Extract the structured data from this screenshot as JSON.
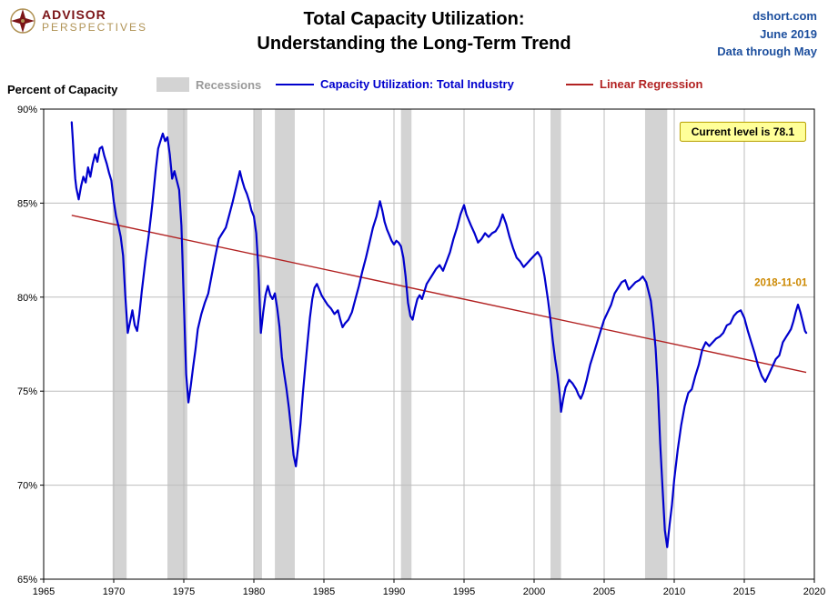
{
  "header": {
    "logo": {
      "line1": "ADVISOR",
      "line2": "PERSPECTIVES"
    },
    "title_line1": "Total Capacity Utilization:",
    "title_line2": "Understanding the Long-Term Trend",
    "source": "dshort.com",
    "date": "June 2019",
    "note": "Data through May"
  },
  "ylabel": "Percent of Capacity",
  "legend": {
    "recessions": "Recessions",
    "series": "Capacity Utilization: Total Industry",
    "regression": "Linear Regression"
  },
  "chart_data": {
    "type": "line",
    "title": "Total Capacity Utilization: Understanding the Long-Term Trend",
    "xlabel": "",
    "ylabel": "Percent of Capacity",
    "xlim": [
      1965,
      2020
    ],
    "ylim": [
      65,
      90
    ],
    "x_ticks": [
      1965,
      1970,
      1975,
      1980,
      1985,
      1990,
      1995,
      2000,
      2005,
      2010,
      2015,
      2020
    ],
    "y_ticks": [
      65,
      70,
      75,
      80,
      85,
      90
    ],
    "y_tick_suffix": "%",
    "grid": true,
    "legend_position": "top",
    "colors": {
      "recession": "#d3d3d3",
      "grid": "#bdbdbd",
      "series": "#0000cd",
      "regression": "#b22222"
    },
    "recessions": [
      [
        1969.92,
        1970.92
      ],
      [
        1973.83,
        1975.25
      ],
      [
        1980.0,
        1980.58
      ],
      [
        1981.5,
        1982.92
      ],
      [
        1990.5,
        1991.25
      ],
      [
        2001.17,
        2001.92
      ],
      [
        2007.92,
        2009.5
      ]
    ],
    "regression": {
      "name": "Linear Regression",
      "x": [
        1967.0,
        2019.42
      ],
      "y": [
        84.35,
        76.0
      ]
    },
    "callout": {
      "text": "Current level is 78.1",
      "x": 2014.9,
      "y": 88.8,
      "bg": "#ffff99",
      "border": "#b8a000"
    },
    "peak_label": {
      "text": "2018-11-01",
      "x": 2019.5,
      "y": 80.6,
      "color": "#cc8800"
    },
    "series": {
      "name": "Capacity Utilization: Total Industry",
      "color": "#0000cd",
      "points": [
        [
          1967.0,
          89.3
        ],
        [
          1967.08,
          88.4
        ],
        [
          1967.17,
          87.2
        ],
        [
          1967.25,
          86.3
        ],
        [
          1967.33,
          85.8
        ],
        [
          1967.5,
          85.2
        ],
        [
          1967.67,
          85.9
        ],
        [
          1967.83,
          86.4
        ],
        [
          1968.0,
          86.1
        ],
        [
          1968.17,
          86.9
        ],
        [
          1968.33,
          86.4
        ],
        [
          1968.5,
          87.1
        ],
        [
          1968.67,
          87.6
        ],
        [
          1968.83,
          87.2
        ],
        [
          1969.0,
          87.9
        ],
        [
          1969.17,
          88.0
        ],
        [
          1969.33,
          87.5
        ],
        [
          1969.5,
          87.1
        ],
        [
          1969.67,
          86.6
        ],
        [
          1969.83,
          86.2
        ],
        [
          1970.0,
          85.1
        ],
        [
          1970.17,
          84.3
        ],
        [
          1970.33,
          83.8
        ],
        [
          1970.5,
          83.2
        ],
        [
          1970.67,
          82.2
        ],
        [
          1970.83,
          80.0
        ],
        [
          1971.0,
          78.1
        ],
        [
          1971.17,
          78.7
        ],
        [
          1971.33,
          79.3
        ],
        [
          1971.5,
          78.5
        ],
        [
          1971.67,
          78.2
        ],
        [
          1971.83,
          79.1
        ],
        [
          1972.0,
          80.3
        ],
        [
          1972.25,
          81.9
        ],
        [
          1972.5,
          83.3
        ],
        [
          1972.75,
          84.9
        ],
        [
          1973.0,
          86.8
        ],
        [
          1973.17,
          87.9
        ],
        [
          1973.33,
          88.3
        ],
        [
          1973.5,
          88.7
        ],
        [
          1973.67,
          88.3
        ],
        [
          1973.83,
          88.5
        ],
        [
          1974.0,
          87.6
        ],
        [
          1974.17,
          86.3
        ],
        [
          1974.33,
          86.7
        ],
        [
          1974.5,
          86.2
        ],
        [
          1974.67,
          85.7
        ],
        [
          1974.83,
          83.8
        ],
        [
          1975.0,
          79.8
        ],
        [
          1975.17,
          75.9
        ],
        [
          1975.33,
          74.4
        ],
        [
          1975.5,
          75.3
        ],
        [
          1975.67,
          76.3
        ],
        [
          1975.83,
          77.2
        ],
        [
          1976.0,
          78.3
        ],
        [
          1976.25,
          79.1
        ],
        [
          1976.5,
          79.7
        ],
        [
          1976.75,
          80.2
        ],
        [
          1977.0,
          81.2
        ],
        [
          1977.25,
          82.2
        ],
        [
          1977.5,
          83.1
        ],
        [
          1977.75,
          83.4
        ],
        [
          1978.0,
          83.7
        ],
        [
          1978.25,
          84.4
        ],
        [
          1978.5,
          85.1
        ],
        [
          1978.75,
          85.9
        ],
        [
          1979.0,
          86.7
        ],
        [
          1979.17,
          86.2
        ],
        [
          1979.33,
          85.8
        ],
        [
          1979.5,
          85.5
        ],
        [
          1979.67,
          85.1
        ],
        [
          1979.83,
          84.6
        ],
        [
          1980.0,
          84.3
        ],
        [
          1980.17,
          83.4
        ],
        [
          1980.33,
          81.4
        ],
        [
          1980.5,
          78.1
        ],
        [
          1980.67,
          79.2
        ],
        [
          1980.83,
          80.1
        ],
        [
          1981.0,
          80.6
        ],
        [
          1981.17,
          80.1
        ],
        [
          1981.33,
          79.9
        ],
        [
          1981.5,
          80.2
        ],
        [
          1981.67,
          79.4
        ],
        [
          1981.83,
          78.4
        ],
        [
          1982.0,
          76.8
        ],
        [
          1982.17,
          75.9
        ],
        [
          1982.33,
          75.1
        ],
        [
          1982.5,
          74.1
        ],
        [
          1982.67,
          72.9
        ],
        [
          1982.83,
          71.6
        ],
        [
          1983.0,
          71.0
        ],
        [
          1983.17,
          72.1
        ],
        [
          1983.33,
          73.3
        ],
        [
          1983.5,
          74.9
        ],
        [
          1983.67,
          76.3
        ],
        [
          1983.83,
          77.6
        ],
        [
          1984.0,
          78.9
        ],
        [
          1984.17,
          79.9
        ],
        [
          1984.33,
          80.5
        ],
        [
          1984.5,
          80.7
        ],
        [
          1984.67,
          80.4
        ],
        [
          1984.83,
          80.1
        ],
        [
          1985.0,
          79.9
        ],
        [
          1985.25,
          79.6
        ],
        [
          1985.5,
          79.4
        ],
        [
          1985.75,
          79.1
        ],
        [
          1986.0,
          79.3
        ],
        [
          1986.17,
          78.8
        ],
        [
          1986.33,
          78.4
        ],
        [
          1986.5,
          78.6
        ],
        [
          1986.75,
          78.8
        ],
        [
          1987.0,
          79.2
        ],
        [
          1987.25,
          79.9
        ],
        [
          1987.5,
          80.6
        ],
        [
          1987.75,
          81.4
        ],
        [
          1988.0,
          82.1
        ],
        [
          1988.25,
          82.9
        ],
        [
          1988.5,
          83.7
        ],
        [
          1988.75,
          84.3
        ],
        [
          1989.0,
          85.1
        ],
        [
          1989.17,
          84.6
        ],
        [
          1989.33,
          84.0
        ],
        [
          1989.5,
          83.6
        ],
        [
          1989.67,
          83.3
        ],
        [
          1989.83,
          83.0
        ],
        [
          1990.0,
          82.8
        ],
        [
          1990.17,
          83.0
        ],
        [
          1990.33,
          82.9
        ],
        [
          1990.5,
          82.7
        ],
        [
          1990.67,
          82.1
        ],
        [
          1990.83,
          81.1
        ],
        [
          1991.0,
          79.7
        ],
        [
          1991.17,
          79.0
        ],
        [
          1991.33,
          78.8
        ],
        [
          1991.5,
          79.4
        ],
        [
          1991.67,
          79.9
        ],
        [
          1991.83,
          80.1
        ],
        [
          1992.0,
          79.9
        ],
        [
          1992.17,
          80.3
        ],
        [
          1992.33,
          80.7
        ],
        [
          1992.5,
          80.9
        ],
        [
          1992.75,
          81.2
        ],
        [
          1993.0,
          81.5
        ],
        [
          1993.25,
          81.7
        ],
        [
          1993.5,
          81.4
        ],
        [
          1993.75,
          81.9
        ],
        [
          1994.0,
          82.4
        ],
        [
          1994.25,
          83.1
        ],
        [
          1994.5,
          83.7
        ],
        [
          1994.75,
          84.4
        ],
        [
          1995.0,
          84.9
        ],
        [
          1995.17,
          84.4
        ],
        [
          1995.33,
          84.1
        ],
        [
          1995.5,
          83.8
        ],
        [
          1995.75,
          83.4
        ],
        [
          1996.0,
          82.9
        ],
        [
          1996.25,
          83.1
        ],
        [
          1996.5,
          83.4
        ],
        [
          1996.75,
          83.2
        ],
        [
          1997.0,
          83.4
        ],
        [
          1997.25,
          83.5
        ],
        [
          1997.5,
          83.8
        ],
        [
          1997.75,
          84.4
        ],
        [
          1998.0,
          83.9
        ],
        [
          1998.25,
          83.2
        ],
        [
          1998.5,
          82.6
        ],
        [
          1998.75,
          82.1
        ],
        [
          1999.0,
          81.9
        ],
        [
          1999.25,
          81.6
        ],
        [
          1999.5,
          81.8
        ],
        [
          1999.75,
          82.0
        ],
        [
          2000.0,
          82.2
        ],
        [
          2000.25,
          82.4
        ],
        [
          2000.5,
          82.1
        ],
        [
          2000.75,
          81.1
        ],
        [
          2001.0,
          79.8
        ],
        [
          2001.17,
          78.8
        ],
        [
          2001.33,
          77.7
        ],
        [
          2001.5,
          76.7
        ],
        [
          2001.67,
          75.9
        ],
        [
          2001.83,
          74.8
        ],
        [
          2001.92,
          73.9
        ],
        [
          2002.08,
          74.6
        ],
        [
          2002.25,
          75.2
        ],
        [
          2002.5,
          75.6
        ],
        [
          2002.75,
          75.4
        ],
        [
          2003.0,
          75.1
        ],
        [
          2003.17,
          74.8
        ],
        [
          2003.33,
          74.6
        ],
        [
          2003.5,
          74.9
        ],
        [
          2003.75,
          75.6
        ],
        [
          2004.0,
          76.4
        ],
        [
          2004.25,
          77.0
        ],
        [
          2004.5,
          77.6
        ],
        [
          2004.75,
          78.2
        ],
        [
          2005.0,
          78.8
        ],
        [
          2005.25,
          79.2
        ],
        [
          2005.5,
          79.6
        ],
        [
          2005.75,
          80.2
        ],
        [
          2006.0,
          80.5
        ],
        [
          2006.25,
          80.8
        ],
        [
          2006.5,
          80.9
        ],
        [
          2006.75,
          80.4
        ],
        [
          2007.0,
          80.6
        ],
        [
          2007.25,
          80.8
        ],
        [
          2007.5,
          80.9
        ],
        [
          2007.75,
          81.1
        ],
        [
          2008.0,
          80.8
        ],
        [
          2008.17,
          80.3
        ],
        [
          2008.33,
          79.8
        ],
        [
          2008.5,
          78.7
        ],
        [
          2008.67,
          77.3
        ],
        [
          2008.83,
          75.2
        ],
        [
          2009.0,
          72.2
        ],
        [
          2009.17,
          69.8
        ],
        [
          2009.33,
          67.6
        ],
        [
          2009.5,
          66.7
        ],
        [
          2009.67,
          67.9
        ],
        [
          2009.83,
          68.9
        ],
        [
          2010.0,
          70.3
        ],
        [
          2010.25,
          71.9
        ],
        [
          2010.5,
          73.2
        ],
        [
          2010.75,
          74.2
        ],
        [
          2011.0,
          74.9
        ],
        [
          2011.25,
          75.1
        ],
        [
          2011.5,
          75.8
        ],
        [
          2011.75,
          76.4
        ],
        [
          2012.0,
          77.2
        ],
        [
          2012.25,
          77.6
        ],
        [
          2012.5,
          77.4
        ],
        [
          2012.75,
          77.6
        ],
        [
          2013.0,
          77.8
        ],
        [
          2013.25,
          77.9
        ],
        [
          2013.5,
          78.1
        ],
        [
          2013.75,
          78.5
        ],
        [
          2014.0,
          78.6
        ],
        [
          2014.25,
          79.0
        ],
        [
          2014.5,
          79.2
        ],
        [
          2014.75,
          79.3
        ],
        [
          2015.0,
          78.9
        ],
        [
          2015.25,
          78.2
        ],
        [
          2015.5,
          77.6
        ],
        [
          2015.75,
          77.0
        ],
        [
          2016.0,
          76.3
        ],
        [
          2016.25,
          75.8
        ],
        [
          2016.5,
          75.5
        ],
        [
          2016.75,
          75.9
        ],
        [
          2017.0,
          76.3
        ],
        [
          2017.25,
          76.7
        ],
        [
          2017.5,
          76.9
        ],
        [
          2017.75,
          77.6
        ],
        [
          2018.0,
          77.9
        ],
        [
          2018.17,
          78.1
        ],
        [
          2018.33,
          78.3
        ],
        [
          2018.5,
          78.7
        ],
        [
          2018.67,
          79.2
        ],
        [
          2018.83,
          79.6
        ],
        [
          2019.0,
          79.2
        ],
        [
          2019.17,
          78.7
        ],
        [
          2019.33,
          78.2
        ],
        [
          2019.42,
          78.1
        ]
      ]
    }
  }
}
